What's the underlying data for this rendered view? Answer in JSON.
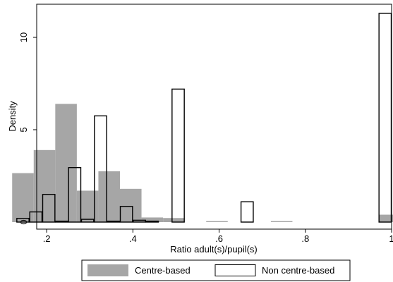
{
  "chart_data": {
    "type": "bar",
    "subtype": "histogram-overlay",
    "xlabel": "Ratio adult(s)/pupil(s)",
    "ylabel": "Density",
    "xlim": [
      0.1,
      1.0
    ],
    "ylim": [
      0,
      12
    ],
    "x_ticks": [
      ".2",
      ".4",
      ".6",
      ".8",
      "1"
    ],
    "x_tick_values": [
      0.2,
      0.4,
      0.6,
      0.8,
      1.0
    ],
    "y_ticks": [
      "0",
      "5",
      "10"
    ],
    "y_tick_values": [
      0,
      5,
      10
    ],
    "grid": false,
    "legend_position": "bottom",
    "series": [
      {
        "name": "Centre-based",
        "style": "filled",
        "color": "#a6a6a6",
        "bins": [
          {
            "x0": 0.12,
            "x1": 0.17,
            "y": 2.65
          },
          {
            "x0": 0.17,
            "x1": 0.22,
            "y": 3.9
          },
          {
            "x0": 0.22,
            "x1": 0.27,
            "y": 6.4
          },
          {
            "x0": 0.27,
            "x1": 0.32,
            "y": 1.7
          },
          {
            "x0": 0.32,
            "x1": 0.37,
            "y": 2.75
          },
          {
            "x0": 0.37,
            "x1": 0.42,
            "y": 1.8
          },
          {
            "x0": 0.42,
            "x1": 0.47,
            "y": 0.25
          },
          {
            "x0": 0.47,
            "x1": 0.52,
            "y": 0.22
          },
          {
            "x0": 0.57,
            "x1": 0.62,
            "y": 0.05
          },
          {
            "x0": 0.72,
            "x1": 0.77,
            "y": 0.05
          },
          {
            "x0": 0.97,
            "x1": 1.02,
            "y": 0.4
          }
        ]
      },
      {
        "name": "Non centre-based",
        "style": "outline",
        "color": "#000000",
        "bins": [
          {
            "x0": 0.13,
            "x1": 0.16,
            "y": 0.2
          },
          {
            "x0": 0.16,
            "x1": 0.19,
            "y": 0.55
          },
          {
            "x0": 0.19,
            "x1": 0.22,
            "y": 1.5
          },
          {
            "x0": 0.22,
            "x1": 0.25,
            "y": 0.05
          },
          {
            "x0": 0.25,
            "x1": 0.28,
            "y": 2.95
          },
          {
            "x0": 0.28,
            "x1": 0.31,
            "y": 0.15
          },
          {
            "x0": 0.31,
            "x1": 0.34,
            "y": 5.75
          },
          {
            "x0": 0.34,
            "x1": 0.37,
            "y": 0.05
          },
          {
            "x0": 0.37,
            "x1": 0.4,
            "y": 0.85
          },
          {
            "x0": 0.4,
            "x1": 0.43,
            "y": 0.1
          },
          {
            "x0": 0.43,
            "x1": 0.46,
            "y": 0.05
          },
          {
            "x0": 0.49,
            "x1": 0.52,
            "y": 7.2
          },
          {
            "x0": 0.65,
            "x1": 0.68,
            "y": 1.1
          },
          {
            "x0": 0.97,
            "x1": 1.0,
            "y": 11.3
          }
        ]
      }
    ]
  }
}
